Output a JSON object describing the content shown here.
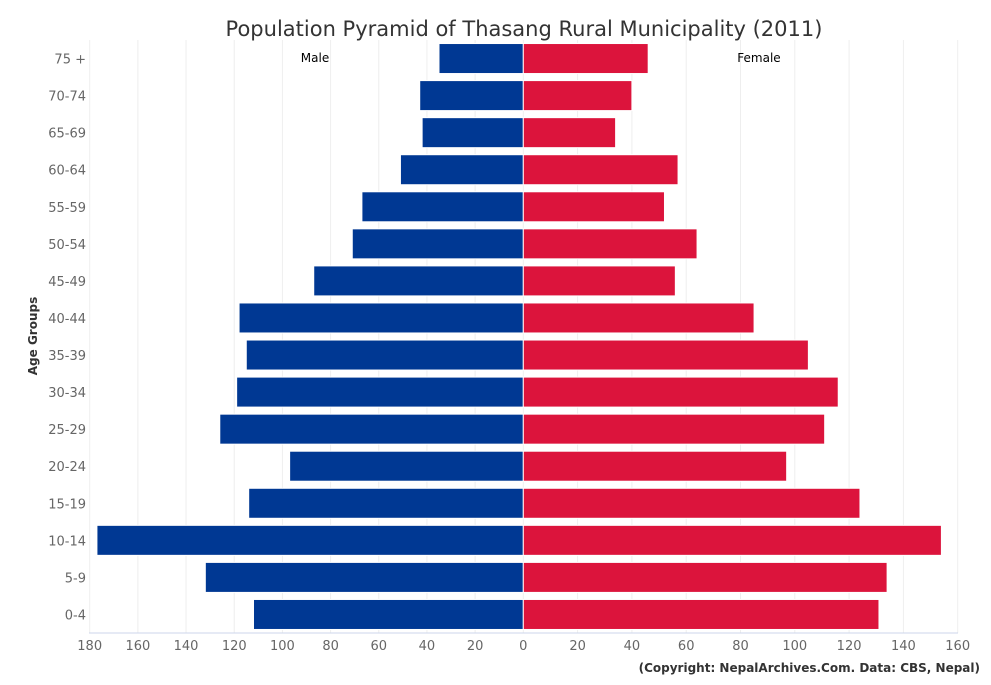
{
  "chart_data": {
    "type": "bar",
    "orientation": "horizontal",
    "title": "Population Pyramid of Thasang Rural Municipality (2011)",
    "ylabel": "Age Groups",
    "categories": [
      "75 +",
      "70-74",
      "65-69",
      "60-64",
      "55-59",
      "50-54",
      "45-49",
      "40-44",
      "35-39",
      "30-34",
      "25-29",
      "20-24",
      "15-19",
      "10-14",
      "5-9",
      "0-4"
    ],
    "series": [
      {
        "name": "Male",
        "color": "#003893",
        "values": [
          35,
          43,
          42,
          51,
          67,
          71,
          87,
          118,
          115,
          119,
          126,
          97,
          114,
          177,
          132,
          112
        ]
      },
      {
        "name": "Female",
        "color": "#DC143C",
        "values": [
          46,
          40,
          34,
          57,
          52,
          64,
          56,
          85,
          105,
          116,
          111,
          97,
          124,
          154,
          134,
          131
        ]
      }
    ],
    "xlim_male": [
      0,
      180
    ],
    "xlim_female": [
      0,
      160
    ],
    "male_ticks": [
      "180",
      "160",
      "140",
      "120",
      "100",
      "80",
      "60",
      "40",
      "20",
      "0"
    ],
    "female_ticks": [
      "20",
      "40",
      "60",
      "80",
      "100",
      "120",
      "140",
      "160"
    ],
    "grid": true,
    "credit": "(Copyright: NepalArchives.Com. Data: CBS, Nepal)"
  }
}
